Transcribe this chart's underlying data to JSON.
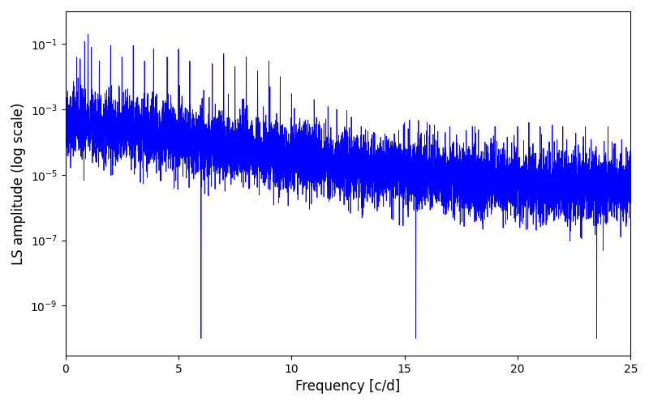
{
  "title": "",
  "xlabel": "Frequency [c/d]",
  "ylabel": "LS amplitude (log scale)",
  "xmin": 0,
  "xmax": 25,
  "ymin": 3e-11,
  "ymax": 1.0,
  "line_color": "#0000ff",
  "line_width": 0.6,
  "background_color": "#ffffff",
  "seed": 42,
  "n_points": 8000,
  "figsize": [
    8.0,
    5.0
  ],
  "dpi": 100
}
